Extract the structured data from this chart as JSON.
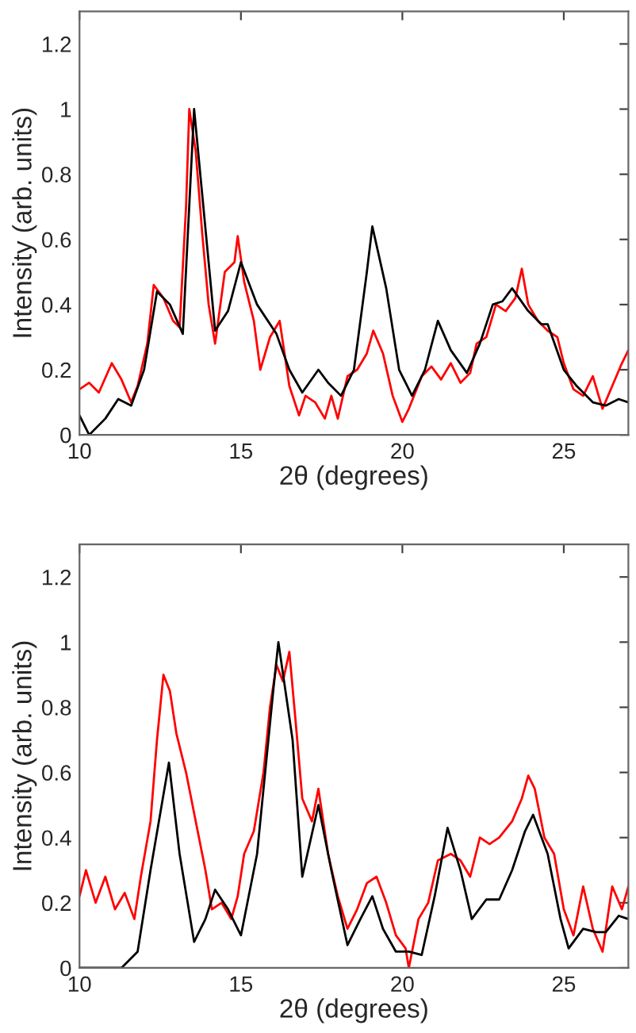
{
  "chart_data": [
    {
      "type": "line",
      "xlabel": "2θ (degrees)",
      "ylabel": "Intensity (arb. units)",
      "xlim": [
        10,
        27
      ],
      "ylim": [
        0,
        1.3
      ],
      "xticks": [
        10,
        15,
        20,
        25
      ],
      "yticks": [
        0,
        0.2,
        0.4,
        0.6,
        0.8,
        1,
        1.2
      ],
      "grid": false,
      "legend": false,
      "marker": "none",
      "line_style": "solid",
      "series": [
        {
          "color": "#ff0000",
          "x": [
            10,
            10.3,
            10.6,
            11,
            11.3,
            11.6,
            11.8,
            12.1,
            12.3,
            12.6,
            12.9,
            13.1,
            13.3,
            13.4,
            13.6,
            13.8,
            14.0,
            14.2,
            14.5,
            14.8,
            14.9,
            15.1,
            15.4,
            15.6,
            15.9,
            16.2,
            16.5,
            16.8,
            17.0,
            17.3,
            17.6,
            17.8,
            18.0,
            18.3,
            18.6,
            18.9,
            19.1,
            19.4,
            19.7,
            20.0,
            20.2,
            20.6,
            20.9,
            21.2,
            21.5,
            21.8,
            22.1,
            22.3,
            22.6,
            22.9,
            23.2,
            23.5,
            23.7,
            23.9,
            24.2,
            24.5,
            24.8,
            25.0,
            25.3,
            25.6,
            25.9,
            26.2,
            26.5,
            26.8,
            27
          ],
          "values": [
            0.14,
            0.16,
            0.13,
            0.22,
            0.17,
            0.1,
            0.15,
            0.28,
            0.46,
            0.42,
            0.35,
            0.33,
            0.7,
            1.0,
            0.87,
            0.62,
            0.4,
            0.28,
            0.5,
            0.53,
            0.61,
            0.47,
            0.35,
            0.2,
            0.3,
            0.35,
            0.15,
            0.06,
            0.12,
            0.1,
            0.05,
            0.12,
            0.05,
            0.18,
            0.2,
            0.25,
            0.32,
            0.25,
            0.12,
            0.04,
            0.08,
            0.18,
            0.21,
            0.17,
            0.22,
            0.16,
            0.19,
            0.28,
            0.3,
            0.4,
            0.38,
            0.42,
            0.51,
            0.4,
            0.35,
            0.32,
            0.3,
            0.22,
            0.14,
            0.12,
            0.18,
            0.08,
            0.15,
            0.22,
            0.26
          ]
        },
        {
          "color": "#000000",
          "x": [
            10,
            10.3,
            10.8,
            11.2,
            11.6,
            12,
            12.4,
            12.8,
            13.2,
            13.55,
            14.2,
            14.6,
            15.0,
            15.5,
            16.1,
            16.5,
            16.9,
            17.4,
            17.7,
            18.1,
            18.5,
            18.9,
            19.07,
            19.5,
            19.9,
            20.3,
            20.7,
            21.1,
            21.5,
            22.0,
            22.4,
            22.8,
            23.1,
            23.4,
            23.9,
            24.3,
            24.5,
            25.0,
            25.4,
            25.9,
            26.3,
            26.7,
            27
          ],
          "values": [
            0.06,
            0.0,
            0.05,
            0.11,
            0.09,
            0.2,
            0.44,
            0.4,
            0.31,
            1.0,
            0.32,
            0.38,
            0.53,
            0.4,
            0.31,
            0.2,
            0.13,
            0.2,
            0.16,
            0.12,
            0.2,
            0.5,
            0.64,
            0.45,
            0.2,
            0.12,
            0.2,
            0.35,
            0.26,
            0.19,
            0.28,
            0.4,
            0.41,
            0.45,
            0.38,
            0.34,
            0.34,
            0.2,
            0.15,
            0.1,
            0.09,
            0.11,
            0.1
          ]
        }
      ]
    },
    {
      "type": "line",
      "xlabel": "2θ (degrees)",
      "ylabel": "Intensity (arb. units)",
      "xlim": [
        10,
        27
      ],
      "ylim": [
        0,
        1.3
      ],
      "xticks": [
        10,
        15,
        20,
        25
      ],
      "yticks": [
        0,
        0.2,
        0.4,
        0.6,
        0.8,
        1,
        1.2
      ],
      "grid": false,
      "legend": false,
      "marker": "none",
      "line_style": "solid",
      "series": [
        {
          "color": "#ff0000",
          "x": [
            10,
            10.2,
            10.5,
            10.8,
            11.1,
            11.4,
            11.7,
            11.9,
            12.2,
            12.4,
            12.6,
            12.8,
            13.0,
            13.3,
            13.6,
            13.9,
            14.1,
            14.4,
            14.7,
            14.9,
            15.1,
            15.4,
            15.7,
            15.9,
            16.1,
            16.3,
            16.5,
            16.7,
            16.9,
            17.2,
            17.4,
            17.7,
            18.0,
            18.3,
            18.6,
            18.9,
            19.2,
            19.5,
            19.8,
            20.1,
            20.2,
            20.5,
            20.8,
            21.1,
            21.5,
            21.8,
            22.1,
            22.4,
            22.7,
            23.0,
            23.4,
            23.7,
            23.9,
            24.1,
            24.4,
            24.7,
            25.0,
            25.3,
            25.6,
            25.9,
            26.2,
            26.5,
            26.8,
            27
          ],
          "values": [
            0.22,
            0.3,
            0.2,
            0.28,
            0.18,
            0.23,
            0.15,
            0.28,
            0.45,
            0.7,
            0.9,
            0.85,
            0.72,
            0.6,
            0.45,
            0.3,
            0.18,
            0.2,
            0.15,
            0.22,
            0.35,
            0.42,
            0.6,
            0.8,
            0.93,
            0.88,
            0.97,
            0.75,
            0.52,
            0.45,
            0.55,
            0.35,
            0.22,
            0.12,
            0.18,
            0.26,
            0.28,
            0.2,
            0.1,
            0.06,
            0.0,
            0.15,
            0.2,
            0.33,
            0.35,
            0.33,
            0.28,
            0.4,
            0.38,
            0.4,
            0.45,
            0.52,
            0.59,
            0.55,
            0.4,
            0.35,
            0.18,
            0.1,
            0.25,
            0.12,
            0.05,
            0.25,
            0.18,
            0.25
          ]
        },
        {
          "color": "#000000",
          "x": [
            10,
            11.3,
            11.8,
            12.2,
            12.77,
            13.1,
            13.55,
            13.9,
            14.2,
            14.6,
            15.0,
            15.5,
            16.0,
            16.16,
            16.6,
            16.9,
            17.4,
            17.8,
            18.3,
            18.7,
            19.07,
            19.4,
            19.8,
            20.2,
            20.6,
            21.0,
            21.4,
            21.8,
            22.15,
            22.6,
            23.0,
            23.4,
            23.8,
            24.05,
            24.5,
            24.9,
            25.15,
            25.6,
            26.0,
            26.3,
            26.7,
            27
          ],
          "values": [
            0,
            0.0,
            0.05,
            0.3,
            0.63,
            0.35,
            0.08,
            0.15,
            0.24,
            0.18,
            0.1,
            0.35,
            0.85,
            1.0,
            0.7,
            0.28,
            0.5,
            0.3,
            0.07,
            0.15,
            0.22,
            0.12,
            0.05,
            0.05,
            0.04,
            0.22,
            0.43,
            0.3,
            0.15,
            0.21,
            0.21,
            0.3,
            0.42,
            0.47,
            0.35,
            0.15,
            0.06,
            0.12,
            0.11,
            0.11,
            0.16,
            0.15
          ]
        }
      ]
    }
  ]
}
